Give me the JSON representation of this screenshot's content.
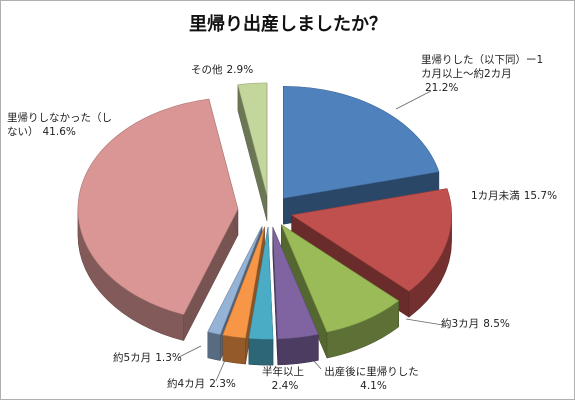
{
  "chart_data": {
    "type": "pie3d",
    "title": "里帰り出産しましたか？",
    "categories": [
      "里帰りした（以下同）ー1カ月以上～約2カ月",
      "1カ月未満",
      "約3カ月",
      "出産後に里帰りした",
      "半年以上",
      "約4カ月",
      "約5カ月",
      "里帰りしなかった（しない）",
      "その他"
    ],
    "values": [
      21.2,
      15.7,
      8.5,
      4.1,
      2.4,
      2.3,
      1.3,
      41.6,
      2.9
    ],
    "value_labels": [
      "21.2%",
      "15.7%",
      "8.5%",
      "4.1%",
      "2.4%",
      "2.3%",
      "1.3%",
      "41.6%",
      "2.9%"
    ],
    "colors": [
      "#4f81bd",
      "#c0504d",
      "#9bbb59",
      "#8064a2",
      "#4bacc6",
      "#f79646",
      "#95b3d7",
      "#d99694",
      "#c3d69b"
    ]
  }
}
